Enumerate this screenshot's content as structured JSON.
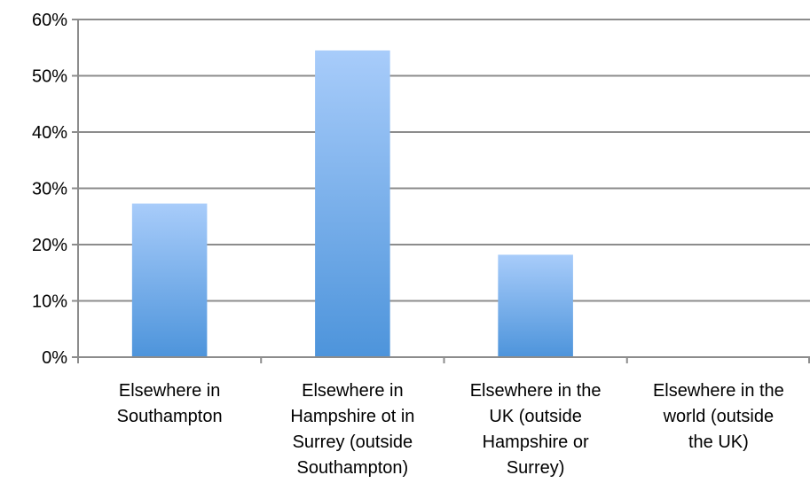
{
  "chart_data": {
    "type": "bar",
    "title": "",
    "xlabel": "",
    "ylabel": "",
    "categories": [
      [
        "Elsewhere in",
        "Southampton"
      ],
      [
        "Elsewhere in",
        "Hampshire ot in",
        "Surrey (outside",
        "Southampton)"
      ],
      [
        "Elsewhere in the",
        "UK (outside",
        "Hampshire or",
        "Surrey)"
      ],
      [
        "Elsewhere in the",
        "world (outside",
        "the UK)"
      ]
    ],
    "values": [
      0.273,
      0.545,
      0.182,
      0.0
    ],
    "ylim": [
      0,
      0.6
    ],
    "y_ticks": [
      "0%",
      "10%",
      "20%",
      "30%",
      "40%",
      "50%",
      "60%"
    ],
    "grid": true,
    "legend": "none",
    "colors": {
      "bar_top": "#a8ccfa",
      "bar_bottom": "#4d94db",
      "grid": "#8c8c8c",
      "axis": "#8c8c8c"
    }
  }
}
